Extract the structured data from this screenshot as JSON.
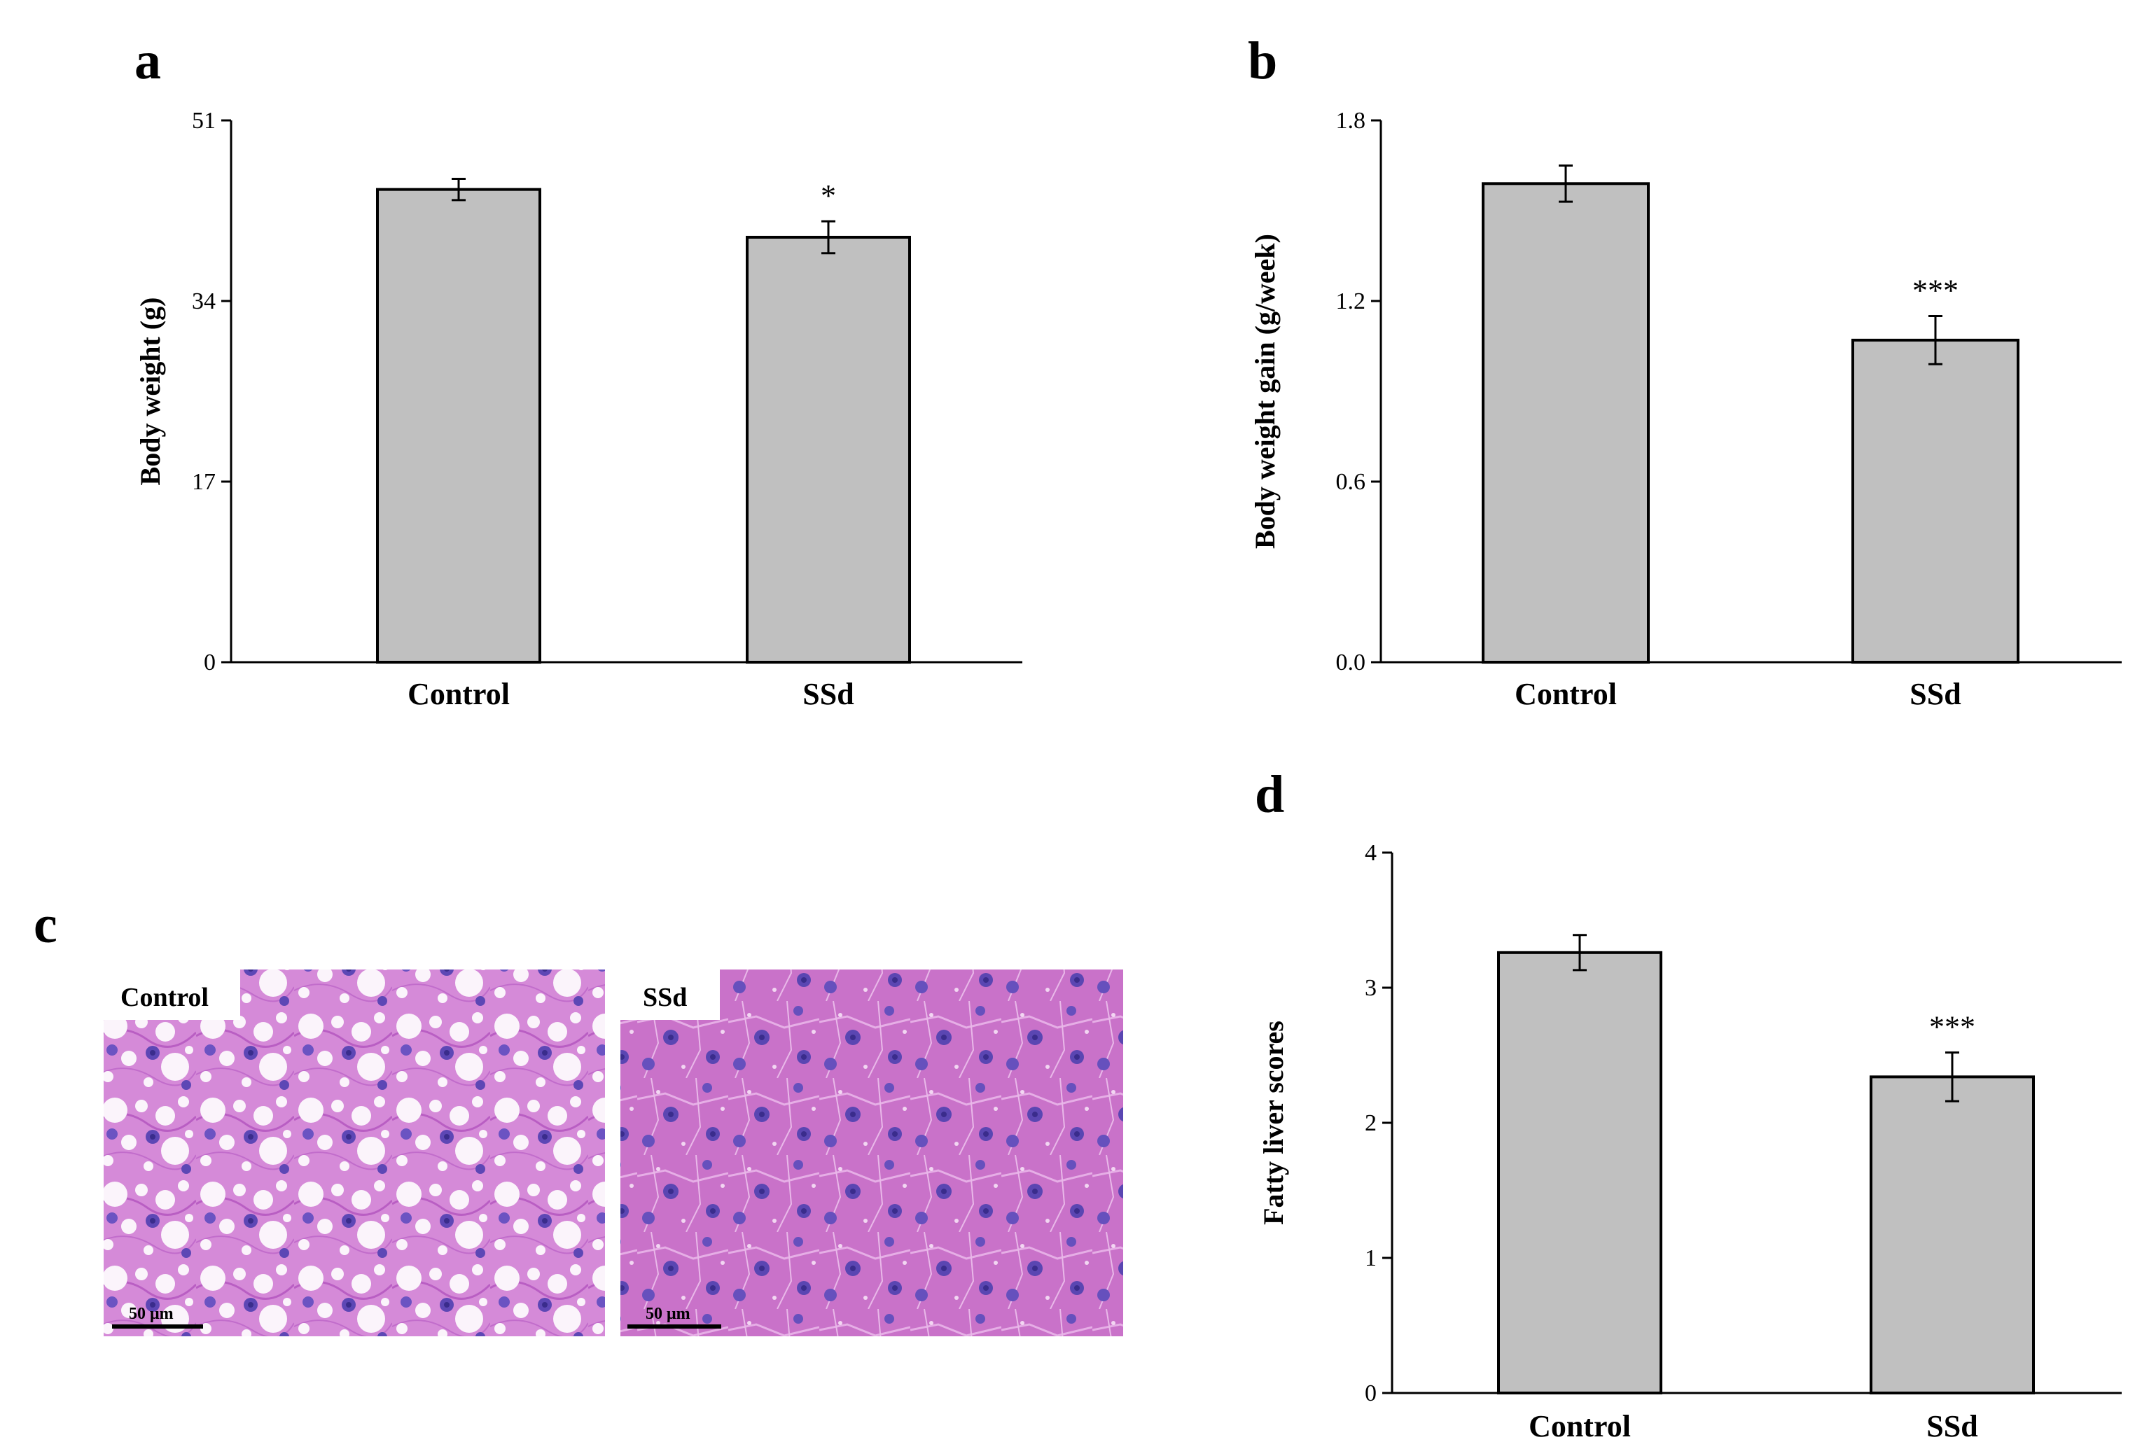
{
  "chart_data": [
    {
      "panel": "a",
      "type": "bar",
      "categories": [
        "Control",
        "SSd"
      ],
      "values": [
        44.5,
        40
      ],
      "errors": [
        1.0,
        1.5
      ],
      "significance": [
        "",
        "*"
      ],
      "ylabel": "Body weight (g)",
      "xlabel": "",
      "ylim": [
        0,
        51
      ],
      "yticks": [
        "0",
        "17",
        "34",
        "51"
      ],
      "bar_color": "#c0c0c0"
    },
    {
      "panel": "b",
      "type": "bar",
      "categories": [
        "Control",
        "SSd"
      ],
      "values": [
        1.59,
        1.07
      ],
      "errors": [
        0.06,
        0.08
      ],
      "significance": [
        "",
        "***"
      ],
      "ylabel": "Body weight gain (g/week)",
      "xlabel": "",
      "ylim": [
        0,
        1.8
      ],
      "yticks": [
        "0.0",
        "0.6",
        "1.2",
        "1.8"
      ],
      "bar_color": "#c0c0c0"
    },
    {
      "panel": "d",
      "type": "bar",
      "categories": [
        "Control",
        "SSd"
      ],
      "values": [
        3.26,
        2.34
      ],
      "errors": [
        0.13,
        0.18
      ],
      "significance": [
        "",
        "***"
      ],
      "ylabel": "Fatty liver scores",
      "xlabel": "",
      "ylim": [
        0,
        4
      ],
      "yticks": [
        "0",
        "1",
        "2",
        "3",
        "4"
      ],
      "bar_color": "#c0c0c0"
    }
  ],
  "histology": {
    "panel": "c",
    "images": [
      {
        "label": "Control",
        "scale_bar": "50 μm"
      },
      {
        "label": "SSd",
        "scale_bar": "50 μm"
      }
    ]
  }
}
